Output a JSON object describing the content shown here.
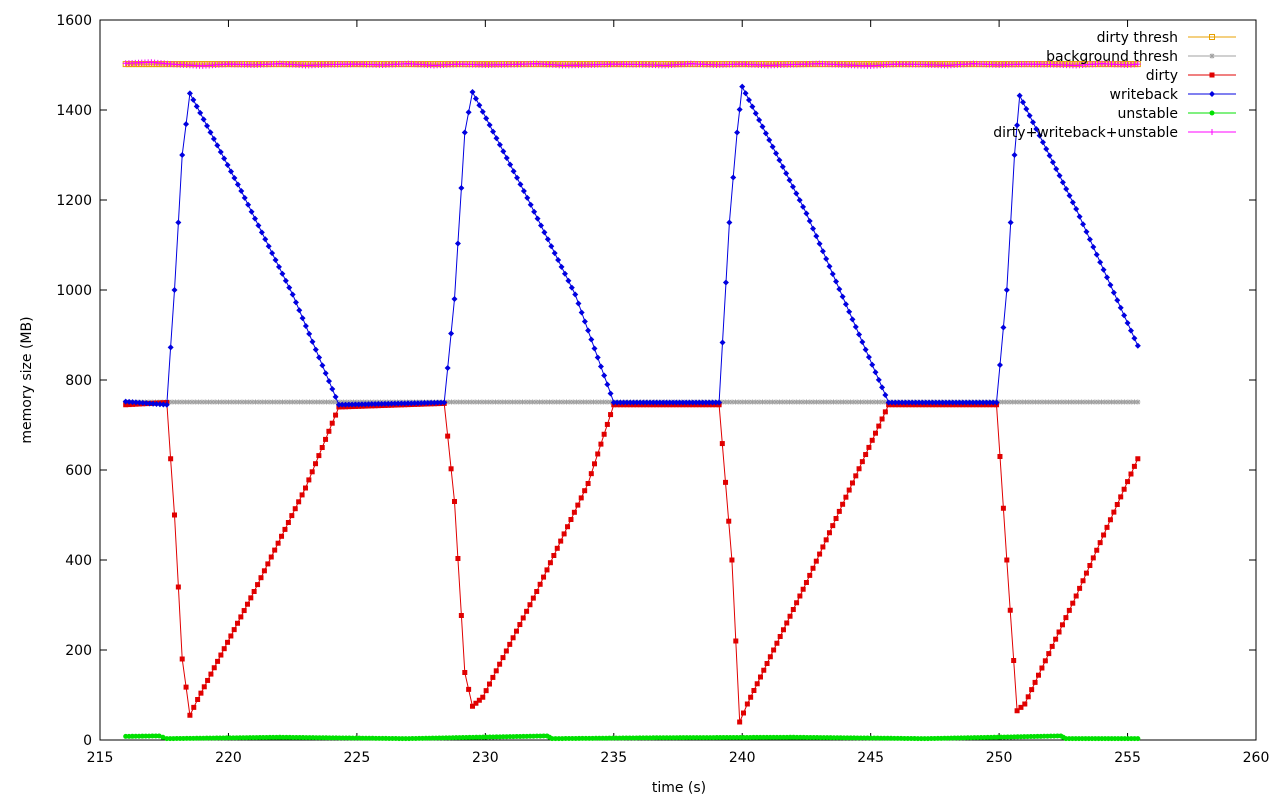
{
  "chart_data": {
    "type": "line",
    "xlabel": "time (s)",
    "ylabel": "memory size (MB)",
    "xlim": [
      215,
      260
    ],
    "ylim": [
      0,
      1600
    ],
    "xticks": [
      215,
      220,
      225,
      230,
      235,
      240,
      245,
      250,
      255,
      260
    ],
    "yticks": [
      0,
      200,
      400,
      600,
      800,
      1000,
      1200,
      1400,
      1600
    ],
    "grid": false,
    "legend_position": "top-right",
    "series": [
      {
        "name": "dirty thresh",
        "color": "#e8a000",
        "marker": "square-open",
        "x": [
          216.0,
          220.0,
          225.0,
          230.0,
          235.0,
          240.0,
          245.0,
          250.0,
          255.4
        ],
        "y": [
          1502,
          1502,
          1502,
          1502,
          1502,
          1502,
          1502,
          1502,
          1502
        ]
      },
      {
        "name": "background thresh",
        "color": "#a0a0a0",
        "marker": "star",
        "x": [
          216.0,
          220.0,
          225.0,
          230.0,
          235.0,
          240.0,
          245.0,
          250.0,
          255.4
        ],
        "y": [
          751,
          751,
          751,
          751,
          751,
          751,
          751,
          751,
          751
        ]
      },
      {
        "name": "dirty",
        "color": "#e00000",
        "marker": "square",
        "x": [
          216.0,
          217.6,
          217.9,
          218.2,
          218.5,
          218.8,
          221.0,
          223.0,
          224.3,
          228.4,
          228.8,
          229.2,
          229.5,
          229.9,
          232.0,
          234.0,
          235.0,
          239.1,
          239.6,
          239.9,
          240.2,
          242.5,
          245.7,
          249.9,
          250.3,
          250.7,
          251.0,
          253.0,
          255.4
        ],
        "y": [
          745,
          750,
          500,
          180,
          55,
          90,
          330,
          560,
          740,
          748,
          530,
          150,
          75,
          95,
          330,
          570,
          745,
          745,
          400,
          40,
          80,
          350,
          745,
          745,
          400,
          65,
          80,
          320,
          625
        ]
      },
      {
        "name": "writeback",
        "color": "#0000e0",
        "marker": "diamond",
        "x": [
          216.0,
          217.6,
          217.9,
          218.2,
          218.5,
          220.5,
          222.5,
          224.3,
          228.4,
          228.8,
          229.2,
          229.5,
          231.5,
          233.5,
          235.0,
          239.1,
          239.5,
          239.8,
          240.0,
          242.5,
          245.7,
          249.9,
          250.3,
          250.6,
          250.8,
          253.0,
          255.4
        ],
        "y": [
          752,
          745,
          1000,
          1300,
          1437,
          1220,
          990,
          745,
          750,
          980,
          1350,
          1440,
          1220,
          990,
          750,
          750,
          1150,
          1350,
          1452,
          1170,
          750,
          750,
          1000,
          1300,
          1432,
          1180,
          876
        ]
      },
      {
        "name": "unstable",
        "color": "#00e000",
        "marker": "circle",
        "x": [
          216.0,
          217.3,
          217.6,
          222.0,
          226.9,
          232.4,
          232.6,
          236.8,
          242.0,
          247.1,
          252.4,
          252.6,
          255.4
        ],
        "y": [
          8,
          9,
          3,
          6,
          3,
          9,
          3,
          5,
          6,
          3,
          9,
          3,
          3
        ]
      },
      {
        "name": "dirty+writeback+unstable",
        "color": "#ff00ff",
        "marker": "plus",
        "x": [
          216.0,
          217.0,
          218.0,
          219.0,
          220.0,
          221.0,
          222.0,
          223.0,
          224.0,
          225.0,
          226.0,
          227.0,
          228.0,
          229.0,
          230.0,
          231.0,
          232.0,
          233.0,
          234.0,
          235.0,
          236.0,
          237.0,
          238.0,
          239.0,
          240.0,
          241.0,
          242.0,
          243.0,
          244.0,
          245.0,
          246.0,
          247.0,
          248.0,
          249.0,
          250.0,
          251.0,
          252.0,
          253.0,
          254.0,
          255.0,
          255.4
        ],
        "y": [
          1504,
          1506,
          1501,
          1498,
          1502,
          1500,
          1503,
          1499,
          1501,
          1502,
          1500,
          1503,
          1499,
          1502,
          1500,
          1501,
          1503,
          1499,
          1500,
          1502,
          1501,
          1499,
          1503,
          1500,
          1502,
          1499,
          1501,
          1503,
          1500,
          1498,
          1502,
          1501,
          1499,
          1503,
          1500,
          1502,
          1501,
          1499,
          1503,
          1500,
          1502
        ]
      }
    ]
  }
}
